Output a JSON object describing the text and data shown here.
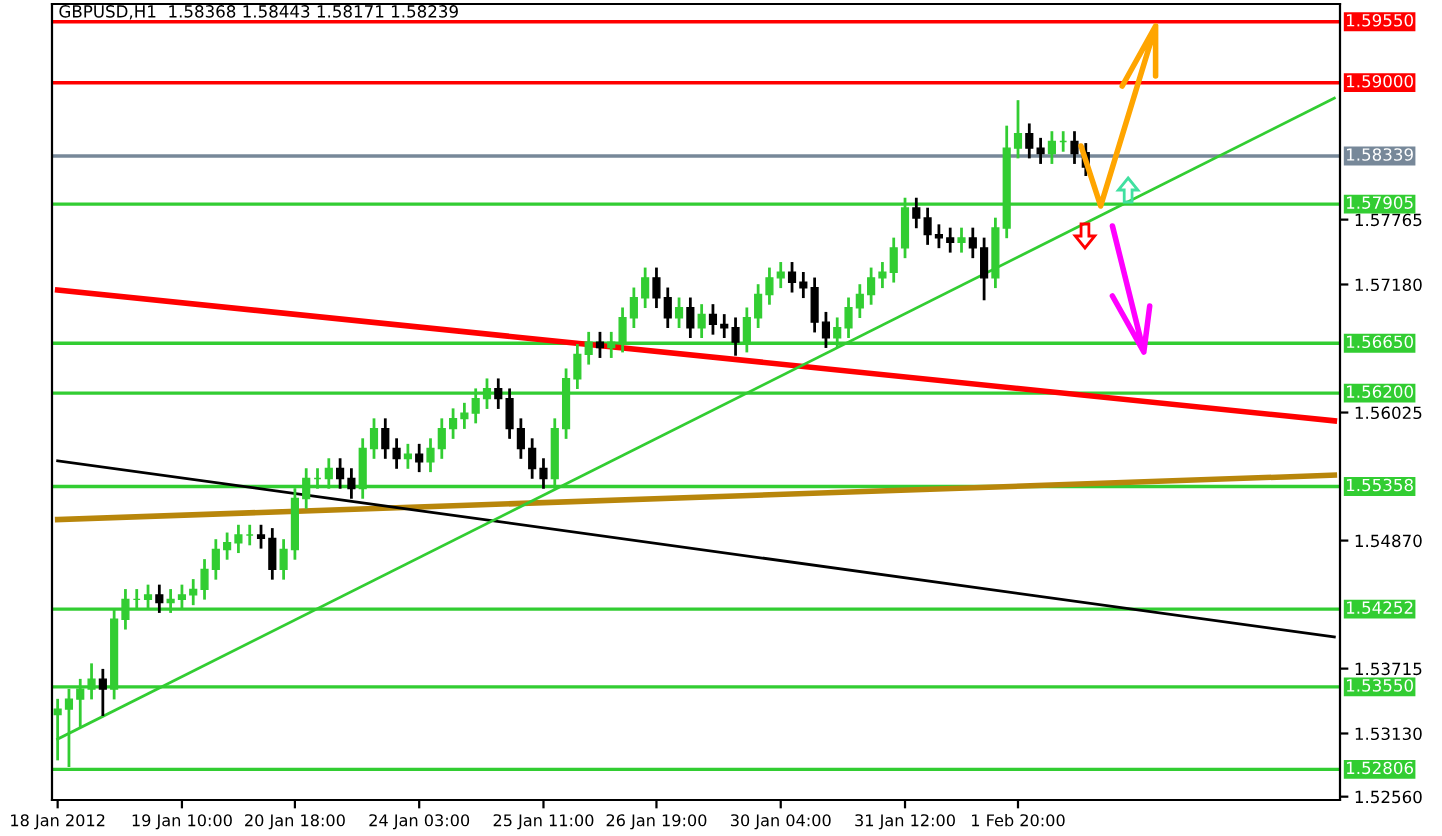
{
  "chart_data": {
    "type": "candlestick",
    "title": "GBPUSD,H1  1.58368 1.58443 1.58171 1.58239",
    "categories": [
      "18 Jan 2012",
      null,
      null,
      null,
      null,
      null,
      null,
      null,
      null,
      null,
      null,
      "19 Jan 10:00",
      null,
      null,
      null,
      null,
      null,
      null,
      null,
      null,
      null,
      "20 Jan 18:00",
      null,
      null,
      null,
      null,
      null,
      null,
      null,
      null,
      null,
      null,
      "24 Jan 03:00",
      null,
      null,
      null,
      null,
      null,
      null,
      null,
      null,
      null,
      null,
      "25 Jan 11:00",
      null,
      null,
      null,
      null,
      null,
      null,
      null,
      null,
      null,
      "26 Jan 19:00",
      null,
      null,
      null,
      null,
      null,
      null,
      null,
      null,
      null,
      null,
      "30 Jan 04:00",
      null,
      null,
      null,
      null,
      null,
      null,
      null,
      null,
      null,
      null,
      "31 Jan 12:00",
      null,
      null,
      null,
      null,
      null,
      null,
      null,
      null,
      null,
      "1 Feb 20:00",
      null,
      null,
      null,
      null,
      null,
      null,
      null,
      null,
      null,
      null,
      null,
      null,
      null,
      null,
      null,
      null,
      null,
      null,
      null,
      null,
      null,
      null,
      null,
      null,
      null,
      null,
      null,
      null
    ],
    "ohlc": [
      [
        1.533,
        1.5343,
        1.529,
        1.5335
      ],
      [
        1.5335,
        1.5352,
        1.5284,
        1.5344
      ],
      [
        1.5344,
        1.5361,
        1.532,
        1.5353
      ],
      [
        1.5353,
        1.5375,
        1.5345,
        1.5362
      ],
      [
        1.5362,
        1.537,
        1.533,
        1.5353
      ],
      [
        1.5353,
        1.5424,
        1.5345,
        1.5416
      ],
      [
        1.5416,
        1.5442,
        1.5408,
        1.5434
      ],
      [
        1.5434,
        1.5442,
        1.5426,
        1.5434
      ],
      [
        1.5434,
        1.5446,
        1.5426,
        1.5438
      ],
      [
        1.5438,
        1.5446,
        1.5423,
        1.5431
      ],
      [
        1.5431,
        1.5442,
        1.5423,
        1.5434
      ],
      [
        1.5434,
        1.5446,
        1.5426,
        1.5438
      ],
      [
        1.5438,
        1.5451,
        1.543,
        1.5443
      ],
      [
        1.5443,
        1.5469,
        1.5435,
        1.5461
      ],
      [
        1.5461,
        1.5487,
        1.5453,
        1.5479
      ],
      [
        1.5479,
        1.5493,
        1.5471,
        1.5485
      ],
      [
        1.5485,
        1.55,
        1.5477,
        1.5492
      ],
      [
        1.5492,
        1.55,
        1.5484,
        1.5492
      ],
      [
        1.5492,
        1.55,
        1.5481,
        1.5489
      ],
      [
        1.5489,
        1.5497,
        1.5453,
        1.5461
      ],
      [
        1.5461,
        1.5487,
        1.5453,
        1.5479
      ],
      [
        1.5479,
        1.5533,
        1.5471,
        1.5525
      ],
      [
        1.5525,
        1.5551,
        1.5517,
        1.5543
      ],
      [
        1.5543,
        1.5551,
        1.5535,
        1.5543
      ],
      [
        1.5543,
        1.556,
        1.5535,
        1.5552
      ],
      [
        1.5552,
        1.556,
        1.5535,
        1.5543
      ],
      [
        1.5543,
        1.5551,
        1.5526,
        1.5534
      ],
      [
        1.5534,
        1.5578,
        1.5526,
        1.557
      ],
      [
        1.557,
        1.5596,
        1.5562,
        1.5588
      ],
      [
        1.5588,
        1.5596,
        1.5562,
        1.557
      ],
      [
        1.557,
        1.5578,
        1.5553,
        1.5561
      ],
      [
        1.5561,
        1.5573,
        1.5553,
        1.5565
      ],
      [
        1.5565,
        1.5573,
        1.555,
        1.5558
      ],
      [
        1.5558,
        1.5578,
        1.555,
        1.557
      ],
      [
        1.557,
        1.5596,
        1.5562,
        1.5588
      ],
      [
        1.5588,
        1.5605,
        1.558,
        1.5597
      ],
      [
        1.5597,
        1.561,
        1.5589,
        1.5602
      ],
      [
        1.5602,
        1.5623,
        1.5594,
        1.5615
      ],
      [
        1.5615,
        1.5632,
        1.5607,
        1.5624
      ],
      [
        1.5624,
        1.5632,
        1.5607,
        1.5615
      ],
      [
        1.5615,
        1.5623,
        1.558,
        1.5588
      ],
      [
        1.5588,
        1.5596,
        1.5562,
        1.557
      ],
      [
        1.557,
        1.5578,
        1.5544,
        1.5552
      ],
      [
        1.5552,
        1.556,
        1.5535,
        1.5543
      ],
      [
        1.5543,
        1.5596,
        1.5535,
        1.5588
      ],
      [
        1.5588,
        1.5641,
        1.558,
        1.5633
      ],
      [
        1.5633,
        1.5663,
        1.5625,
        1.5655
      ],
      [
        1.5655,
        1.5674,
        1.5647,
        1.5666
      ],
      [
        1.5666,
        1.5674,
        1.5653,
        1.5661
      ],
      [
        1.5661,
        1.5674,
        1.5653,
        1.5666
      ],
      [
        1.5666,
        1.5696,
        1.5658,
        1.5688
      ],
      [
        1.5688,
        1.5714,
        1.568,
        1.5706
      ],
      [
        1.5706,
        1.5732,
        1.5698,
        1.5724
      ],
      [
        1.5724,
        1.5732,
        1.5698,
        1.5706
      ],
      [
        1.5706,
        1.5714,
        1.568,
        1.5688
      ],
      [
        1.5688,
        1.5705,
        1.568,
        1.5697
      ],
      [
        1.5697,
        1.5705,
        1.5671,
        1.5679
      ],
      [
        1.5679,
        1.5699,
        1.5671,
        1.5691
      ],
      [
        1.5691,
        1.5699,
        1.5674,
        1.5682
      ],
      [
        1.5682,
        1.569,
        1.5671,
        1.5679
      ],
      [
        1.5679,
        1.5687,
        1.5655,
        1.5666
      ],
      [
        1.5666,
        1.5696,
        1.5658,
        1.5688
      ],
      [
        1.5688,
        1.5717,
        1.568,
        1.5709
      ],
      [
        1.5709,
        1.5732,
        1.5701,
        1.5724
      ],
      [
        1.5724,
        1.5737,
        1.5716,
        1.5729
      ],
      [
        1.5729,
        1.5737,
        1.5712,
        1.572
      ],
      [
        1.572,
        1.5728,
        1.5707,
        1.5715
      ],
      [
        1.5715,
        1.5723,
        1.5676,
        1.5684
      ],
      [
        1.5684,
        1.5692,
        1.5662,
        1.567
      ],
      [
        1.567,
        1.5687,
        1.5662,
        1.5679
      ],
      [
        1.5679,
        1.5705,
        1.5671,
        1.5697
      ],
      [
        1.5697,
        1.5717,
        1.5689,
        1.5709
      ],
      [
        1.5709,
        1.5732,
        1.5701,
        1.5724
      ],
      [
        1.5724,
        1.5737,
        1.5716,
        1.5729
      ],
      [
        1.5729,
        1.5759,
        1.5721,
        1.5751
      ],
      [
        1.5751,
        1.5795,
        1.5743,
        1.5787
      ],
      [
        1.5787,
        1.5795,
        1.577,
        1.5778
      ],
      [
        1.5778,
        1.5786,
        1.5755,
        1.5763
      ],
      [
        1.5763,
        1.5771,
        1.5752,
        1.576
      ],
      [
        1.576,
        1.5768,
        1.5748,
        1.5756
      ],
      [
        1.5756,
        1.5768,
        1.5748,
        1.576
      ],
      [
        1.576,
        1.5768,
        1.5743,
        1.5751
      ],
      [
        1.5751,
        1.5759,
        1.5705,
        1.5724
      ],
      [
        1.5724,
        1.5777,
        1.5716,
        1.5769
      ],
      [
        1.5769,
        1.586,
        1.5761,
        1.5841
      ],
      [
        1.5841,
        1.5883,
        1.5833,
        1.5854
      ],
      [
        1.5854,
        1.5862,
        1.5833,
        1.5841
      ],
      [
        1.5841,
        1.5849,
        1.5828,
        1.5836
      ],
      [
        1.5836,
        1.5855,
        1.5828,
        1.5847
      ],
      [
        1.5847,
        1.5855,
        1.5839,
        1.5847
      ],
      [
        1.5847,
        1.5855,
        1.5828,
        1.5836
      ],
      [
        1.58368,
        1.58443,
        1.58171,
        1.58239
      ],
      null,
      null,
      null,
      null,
      null,
      null,
      null,
      null,
      null,
      null,
      null,
      null,
      null,
      null,
      null,
      null,
      null,
      null,
      null,
      null,
      null,
      null
    ],
    "colors": [
      "#32cd32",
      "#32cd32",
      "#32cd32",
      "#32cd32",
      "#000000",
      "#32cd32",
      "#32cd32",
      "#32cd32",
      "#32cd32",
      "#000000",
      "#32cd32",
      "#32cd32",
      "#32cd32",
      "#32cd32",
      "#32cd32",
      "#32cd32",
      "#32cd32",
      "#32cd32",
      "#000000",
      "#000000",
      "#32cd32",
      "#32cd32",
      "#32cd32",
      "#32cd32",
      "#32cd32",
      "#000000",
      "#000000",
      "#32cd32",
      "#32cd32",
      "#000000",
      "#000000",
      "#32cd32",
      "#000000",
      "#32cd32",
      "#32cd32",
      "#32cd32",
      "#32cd32",
      "#32cd32",
      "#32cd32",
      "#000000",
      "#000000",
      "#000000",
      "#000000",
      "#000000",
      "#32cd32",
      "#32cd32",
      "#32cd32",
      "#32cd32",
      "#000000",
      "#32cd32",
      "#32cd32",
      "#32cd32",
      "#32cd32",
      "#000000",
      "#000000",
      "#32cd32",
      "#000000",
      "#32cd32",
      "#000000",
      "#000000",
      "#000000",
      "#32cd32",
      "#32cd32",
      "#32cd32",
      "#32cd32",
      "#000000",
      "#000000",
      "#000000",
      "#000000",
      "#32cd32",
      "#32cd32",
      "#32cd32",
      "#32cd32",
      "#32cd32",
      "#32cd32",
      "#32cd32",
      "#000000",
      "#000000",
      "#000000",
      "#000000",
      "#32cd32",
      "#000000",
      "#000000",
      "#32cd32",
      "#32cd32",
      "#32cd32",
      "#000000",
      "#000000",
      "#32cd32",
      "#32cd32",
      "#000000",
      "#000000",
      null,
      null,
      null,
      null,
      null,
      null,
      null,
      null,
      null,
      null,
      null,
      null,
      null,
      null,
      null,
      null,
      null,
      null,
      null,
      null,
      null,
      null
    ],
    "series": [
      {
        "type": "line",
        "color": "#ff0000",
        "values": [
          1.5713,
          null,
          null,
          null,
          null,
          null,
          null,
          null,
          null,
          null,
          null,
          null,
          null,
          null,
          null,
          null,
          null,
          null,
          null,
          null,
          null,
          null,
          null,
          null,
          null,
          null,
          null,
          null,
          null,
          null,
          null,
          null,
          null,
          null,
          null,
          null,
          null,
          null,
          null,
          null,
          null,
          null,
          null,
          null,
          null,
          null,
          null,
          null,
          null,
          null,
          null,
          null,
          null,
          null,
          null,
          null,
          null,
          null,
          null,
          null,
          null,
          null,
          null,
          null,
          null,
          null,
          null,
          null,
          null,
          null,
          null,
          null,
          null,
          null,
          null,
          null,
          null,
          null,
          null,
          null,
          null,
          null,
          null,
          null,
          null,
          null,
          null,
          null,
          null,
          null,
          null,
          null,
          null,
          null,
          null,
          null,
          null,
          null,
          null,
          null,
          null,
          null,
          null,
          null,
          null,
          null,
          null,
          null,
          null,
          null,
          null,
          null,
          null,
          1.5595
        ]
      },
      {
        "type": "line",
        "color": "#b8860b",
        "values": [
          1.5506,
          null,
          null,
          null,
          null,
          null,
          null,
          null,
          null,
          null,
          null,
          null,
          null,
          null,
          null,
          null,
          null,
          null,
          null,
          null,
          null,
          null,
          null,
          null,
          null,
          null,
          null,
          null,
          null,
          null,
          null,
          null,
          null,
          null,
          null,
          null,
          null,
          null,
          null,
          null,
          null,
          null,
          null,
          null,
          null,
          null,
          null,
          null,
          null,
          null,
          null,
          null,
          null,
          null,
          null,
          null,
          null,
          null,
          null,
          null,
          null,
          null,
          null,
          null,
          null,
          null,
          null,
          null,
          null,
          null,
          null,
          null,
          null,
          null,
          null,
          null,
          null,
          null,
          null,
          null,
          null,
          null,
          null,
          null,
          null,
          null,
          null,
          null,
          null,
          null,
          null,
          null,
          null,
          null,
          null,
          null,
          null,
          null,
          null,
          null,
          null,
          null,
          null,
          null,
          null,
          null,
          null,
          null,
          null,
          null,
          null,
          null,
          null,
          1.5546
        ]
      },
      {
        "type": "line",
        "color": "#000000",
        "values": [
          1.5559,
          null,
          null,
          null,
          null,
          null,
          null,
          null,
          null,
          null,
          null,
          null,
          null,
          null,
          null,
          null,
          null,
          null,
          null,
          null,
          null,
          null,
          null,
          null,
          null,
          null,
          null,
          null,
          null,
          null,
          null,
          null,
          null,
          null,
          null,
          null,
          null,
          null,
          null,
          null,
          null,
          null,
          null,
          null,
          null,
          null,
          null,
          null,
          null,
          null,
          null,
          null,
          null,
          null,
          null,
          null,
          null,
          null,
          null,
          null,
          null,
          null,
          null,
          null,
          null,
          null,
          null,
          null,
          null,
          null,
          null,
          null,
          null,
          null,
          null,
          null,
          null,
          null,
          null,
          null,
          null,
          null,
          null,
          null,
          null,
          null,
          null,
          null,
          null,
          null,
          null,
          null,
          null,
          null,
          null,
          null,
          null,
          null,
          null,
          null,
          null,
          null,
          null,
          null,
          null,
          null,
          null,
          null,
          null,
          null,
          null,
          null,
          null,
          1.54
        ]
      },
      {
        "type": "line",
        "color": "#32cd32",
        "values": [
          1.5308,
          null,
          null,
          null,
          null,
          null,
          null,
          null,
          null,
          null,
          null,
          null,
          null,
          null,
          null,
          null,
          null,
          null,
          null,
          null,
          null,
          null,
          null,
          null,
          null,
          null,
          null,
          null,
          null,
          null,
          null,
          null,
          null,
          null,
          null,
          null,
          null,
          null,
          null,
          null,
          null,
          null,
          null,
          null,
          null,
          null,
          null,
          null,
          null,
          null,
          null,
          null,
          null,
          null,
          null,
          null,
          null,
          null,
          null,
          null,
          null,
          null,
          null,
          null,
          null,
          null,
          null,
          null,
          null,
          null,
          null,
          null,
          null,
          null,
          null,
          null,
          null,
          null,
          null,
          null,
          null,
          null,
          null,
          null,
          null,
          null,
          null,
          null,
          null,
          null,
          null,
          null,
          null,
          null,
          null,
          null,
          null,
          null,
          null,
          null,
          null,
          null,
          null,
          null,
          null,
          null,
          null,
          null,
          null,
          null,
          null,
          null,
          null,
          1.5886
        ]
      }
    ],
    "ref_lines": [
      {
        "axis": "y",
        "value": 1.5955,
        "label": "1.59550",
        "color": "#ff0000"
      },
      {
        "axis": "y",
        "value": 1.59,
        "label": "1.59000",
        "color": "#ff0000"
      },
      {
        "axis": "y",
        "value": 1.58339,
        "label": "1.58339",
        "color": "#778899"
      },
      {
        "axis": "y",
        "value": 1.57905,
        "label": "1.57905",
        "color": "#32cd32"
      },
      {
        "axis": "y",
        "value": 1.5665,
        "label": "1.56650",
        "color": "#32cd32"
      },
      {
        "axis": "y",
        "value": 1.562,
        "label": "1.56200",
        "color": "#32cd32"
      },
      {
        "axis": "y",
        "value": 1.55358,
        "label": "1.55358",
        "color": "#32cd32"
      },
      {
        "axis": "y",
        "value": 1.54252,
        "label": "1.54252",
        "color": "#32cd32"
      },
      {
        "axis": "y",
        "value": 1.5355,
        "label": "1.53550",
        "color": "#32cd32"
      },
      {
        "axis": "y",
        "value": 1.52806,
        "label": "1.52806",
        "color": "#32cd32"
      }
    ],
    "ylim": [
      1.5253,
      1.5971
    ],
    "yticks": [
      {
        "value": 1.57765,
        "label": "1.57765"
      },
      {
        "value": 1.5718,
        "label": "1.57180"
      },
      {
        "value": 1.56025,
        "label": "1.56025"
      },
      {
        "value": 1.5487,
        "label": "1.54870"
      },
      {
        "value": 1.53715,
        "label": "1.53715"
      },
      {
        "value": 1.5313,
        "label": "1.53130"
      },
      {
        "value": 1.5256,
        "label": "1.52560"
      }
    ],
    "grid": false,
    "legend": false
  }
}
